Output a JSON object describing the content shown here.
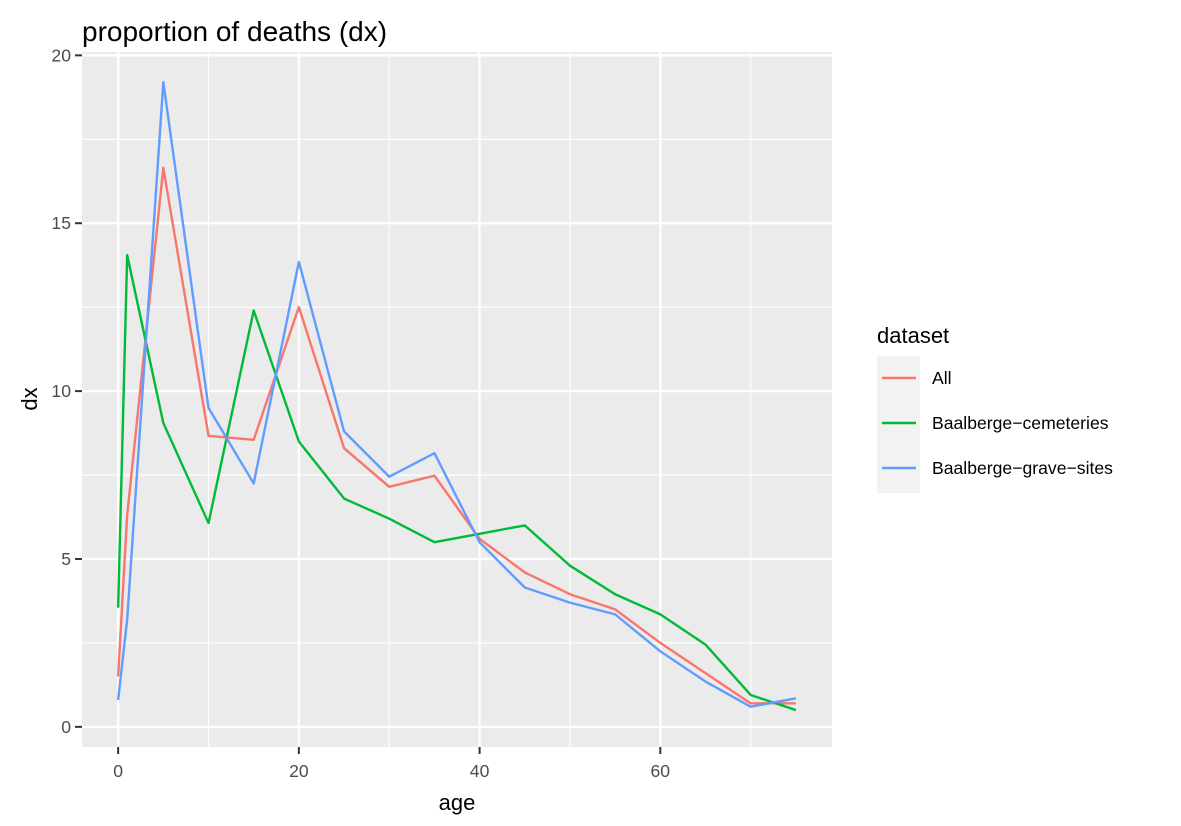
{
  "chart_data": {
    "type": "line",
    "title": "proportion of deaths (dx)",
    "xlabel": "age",
    "ylabel": "dx",
    "xlim": [
      -4,
      79
    ],
    "ylim": [
      -0.6,
      20.1
    ],
    "xticks": [
      0,
      20,
      40,
      60
    ],
    "yticks": [
      0,
      5,
      10,
      15,
      20
    ],
    "grid": true,
    "legend": {
      "title": "dataset",
      "placement": "right"
    },
    "series": [
      {
        "name": "All",
        "color": "#F8766D",
        "x": [
          0,
          1,
          5,
          10,
          15,
          20,
          25,
          30,
          35,
          40,
          45,
          50,
          55,
          60,
          65,
          70,
          75
        ],
        "y": [
          1.5,
          6.3,
          16.65,
          8.67,
          8.55,
          12.5,
          8.3,
          7.15,
          7.48,
          5.6,
          4.6,
          3.95,
          3.5,
          2.5,
          1.6,
          0.7,
          0.7
        ]
      },
      {
        "name": "Baalberge−cemeteries",
        "color": "#00BA38",
        "x": [
          0,
          1,
          5,
          10,
          15,
          20,
          25,
          30,
          35,
          40,
          45,
          50,
          55,
          60,
          65,
          70,
          75
        ],
        "y": [
          3.55,
          14.05,
          9.05,
          6.07,
          12.4,
          8.5,
          6.8,
          6.2,
          5.5,
          5.75,
          6.0,
          4.8,
          3.95,
          3.35,
          2.45,
          0.95,
          0.5
        ]
      },
      {
        "name": "Baalberge−grave−sites",
        "color": "#619CFF",
        "x": [
          0,
          1,
          5,
          10,
          15,
          20,
          25,
          30,
          35,
          40,
          45,
          50,
          55,
          60,
          65,
          70,
          75
        ],
        "y": [
          0.8,
          3.2,
          19.2,
          9.5,
          7.25,
          13.85,
          8.8,
          7.45,
          8.15,
          5.5,
          4.15,
          3.7,
          3.35,
          2.25,
          1.35,
          0.6,
          0.85
        ]
      }
    ]
  }
}
